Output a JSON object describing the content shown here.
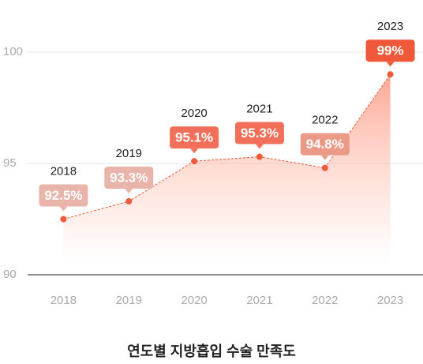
{
  "chart_data": {
    "type": "line",
    "title": "연도별 지방흡입 수술 만족도",
    "categories": [
      "2018",
      "2019",
      "2020",
      "2021",
      "2022",
      "2023"
    ],
    "series": [
      {
        "name": "만족도",
        "color": "#ee5a3c",
        "values": [
          92.5,
          93.3,
          95.1,
          95.3,
          94.8,
          99
        ],
        "value_labels": [
          "92.5%",
          "93.3%",
          "95.1%",
          "95.3%",
          "94.8%",
          "99%"
        ],
        "label_colors": [
          "#e9b5aa",
          "#e9b5aa",
          "#f2705a",
          "#f2705a",
          "#eb9a88",
          "#f0583a"
        ]
      }
    ],
    "ylim": [
      90,
      100
    ],
    "yticks": [
      90,
      95,
      100
    ],
    "grid": true
  }
}
